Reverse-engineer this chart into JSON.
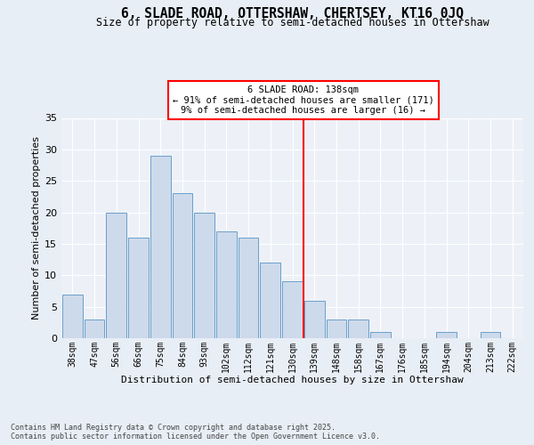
{
  "title1": "6, SLADE ROAD, OTTERSHAW, CHERTSEY, KT16 0JQ",
  "title2": "Size of property relative to semi-detached houses in Ottershaw",
  "xlabel": "Distribution of semi-detached houses by size in Ottershaw",
  "ylabel": "Number of semi-detached properties",
  "categories": [
    "38sqm",
    "47sqm",
    "56sqm",
    "66sqm",
    "75sqm",
    "84sqm",
    "93sqm",
    "102sqm",
    "112sqm",
    "121sqm",
    "130sqm",
    "139sqm",
    "148sqm",
    "158sqm",
    "167sqm",
    "176sqm",
    "185sqm",
    "194sqm",
    "204sqm",
    "213sqm",
    "222sqm"
  ],
  "values": [
    7,
    3,
    20,
    16,
    29,
    23,
    20,
    17,
    16,
    12,
    9,
    6,
    3,
    3,
    1,
    0,
    0,
    1,
    0,
    1,
    0
  ],
  "bar_color": "#cddaeb",
  "bar_edge_color": "#6a9fca",
  "marker_label": "6 SLADE ROAD: 138sqm",
  "annotation_line1": "← 91% of semi-detached houses are smaller (171)",
  "annotation_line2": "9% of semi-detached houses are larger (16) →",
  "ylim": [
    0,
    35
  ],
  "yticks": [
    0,
    5,
    10,
    15,
    20,
    25,
    30,
    35
  ],
  "footer1": "Contains HM Land Registry data © Crown copyright and database right 2025.",
  "footer2": "Contains public sector information licensed under the Open Government Licence v3.0.",
  "bg_color": "#e8eef5",
  "plot_bg_color": "#edf1f7"
}
